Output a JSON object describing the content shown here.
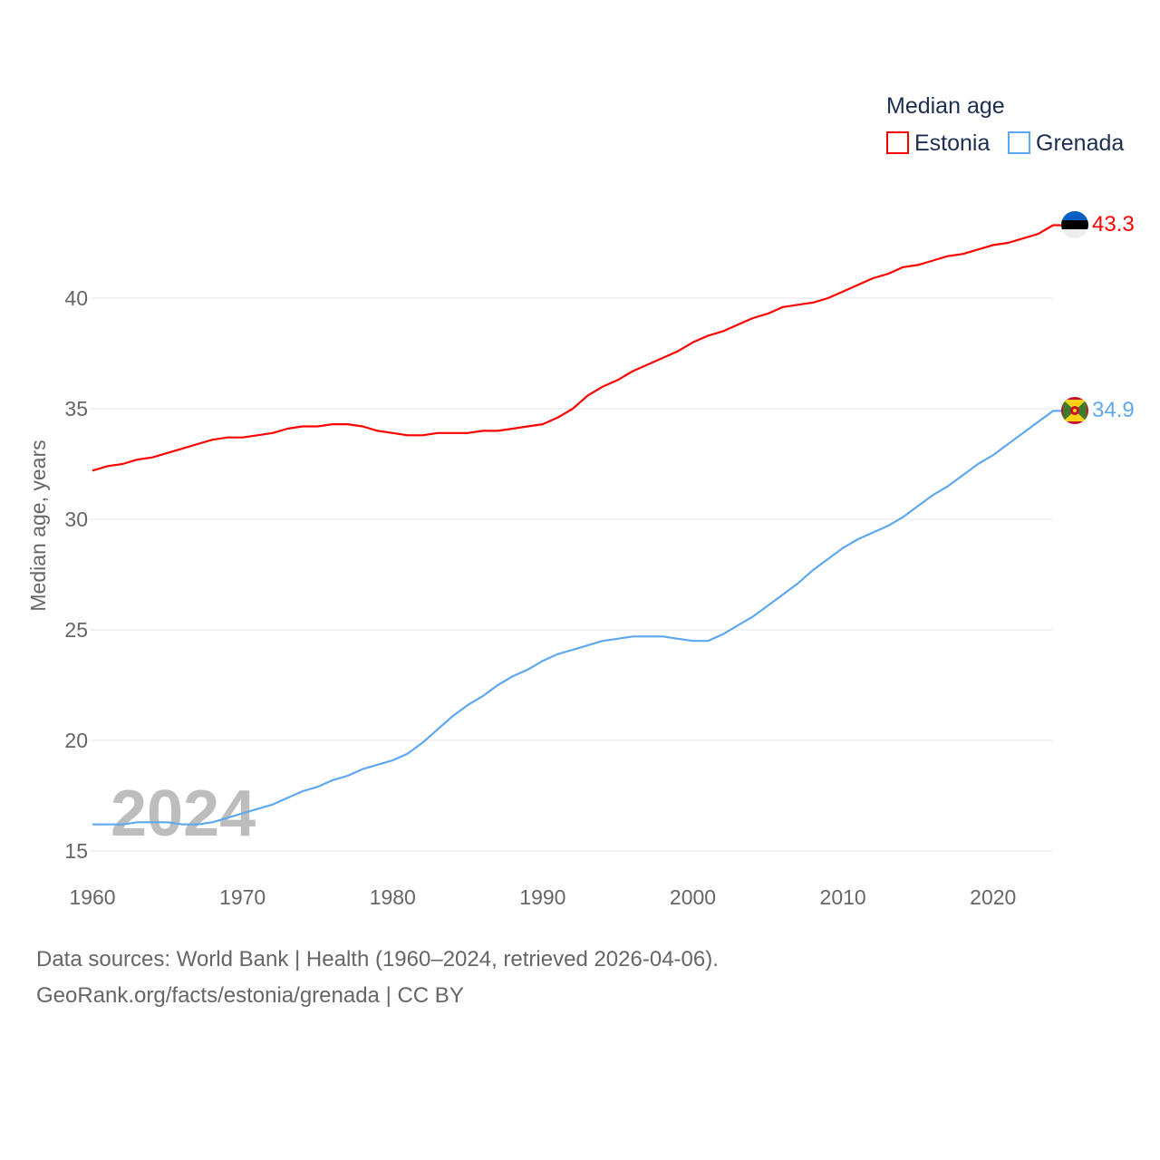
{
  "chart_data": {
    "type": "line",
    "title": "Median age",
    "xlabel": "",
    "ylabel": "Median age, years",
    "xlim": [
      1960,
      2024
    ],
    "ylim": [
      15,
      43.3
    ],
    "yticks": [
      15,
      20,
      25,
      30,
      35,
      40
    ],
    "xticks": [
      1960,
      1970,
      1980,
      1990,
      2000,
      2010,
      2020
    ],
    "grid": true,
    "legend_position": "top-right",
    "watermark_year": "2024",
    "x": [
      1960,
      1961,
      1962,
      1963,
      1964,
      1965,
      1966,
      1967,
      1968,
      1969,
      1970,
      1971,
      1972,
      1973,
      1974,
      1975,
      1976,
      1977,
      1978,
      1979,
      1980,
      1981,
      1982,
      1983,
      1984,
      1985,
      1986,
      1987,
      1988,
      1989,
      1990,
      1991,
      1992,
      1993,
      1994,
      1995,
      1996,
      1997,
      1998,
      1999,
      2000,
      2001,
      2002,
      2003,
      2004,
      2005,
      2006,
      2007,
      2008,
      2009,
      2010,
      2011,
      2012,
      2013,
      2014,
      2015,
      2016,
      2017,
      2018,
      2019,
      2020,
      2021,
      2022,
      2023,
      2024
    ],
    "series": [
      {
        "name": "Estonia",
        "color": "#ff0000",
        "end_label": "43.3",
        "flag": "estonia-flag",
        "values": [
          32.2,
          32.4,
          32.5,
          32.7,
          32.8,
          33.0,
          33.2,
          33.4,
          33.6,
          33.7,
          33.7,
          33.8,
          33.9,
          34.1,
          34.2,
          34.2,
          34.3,
          34.3,
          34.2,
          34.0,
          33.9,
          33.8,
          33.8,
          33.9,
          33.9,
          33.9,
          34.0,
          34.0,
          34.1,
          34.2,
          34.3,
          34.6,
          35.0,
          35.6,
          36.0,
          36.3,
          36.7,
          37.0,
          37.3,
          37.6,
          38.0,
          38.3,
          38.5,
          38.8,
          39.1,
          39.3,
          39.6,
          39.7,
          39.8,
          40.0,
          40.3,
          40.6,
          40.9,
          41.1,
          41.4,
          41.5,
          41.7,
          41.9,
          42.0,
          42.2,
          42.4,
          42.5,
          42.7,
          42.9,
          43.3
        ]
      },
      {
        "name": "Grenada",
        "color": "#5ea8f0",
        "end_label": "34.9",
        "flag": "grenada-flag",
        "values": [
          16.2,
          16.2,
          16.2,
          16.3,
          16.3,
          16.3,
          16.2,
          16.2,
          16.3,
          16.5,
          16.7,
          16.9,
          17.1,
          17.4,
          17.7,
          17.9,
          18.2,
          18.4,
          18.7,
          18.9,
          19.1,
          19.4,
          19.9,
          20.5,
          21.1,
          21.6,
          22.0,
          22.5,
          22.9,
          23.2,
          23.6,
          23.9,
          24.1,
          24.3,
          24.5,
          24.6,
          24.7,
          24.7,
          24.7,
          24.6,
          24.5,
          24.5,
          24.8,
          25.2,
          25.6,
          26.1,
          26.6,
          27.1,
          27.7,
          28.2,
          28.7,
          29.1,
          29.4,
          29.7,
          30.1,
          30.6,
          31.1,
          31.5,
          32.0,
          32.5,
          32.9,
          33.4,
          33.9,
          34.4,
          34.9
        ]
      }
    ]
  },
  "footer": {
    "line1": "Data sources: World Bank | Health (1960–2024, retrieved 2026-04-06).",
    "line2": "GeoRank.org/facts/estonia/grenada | CC BY"
  }
}
